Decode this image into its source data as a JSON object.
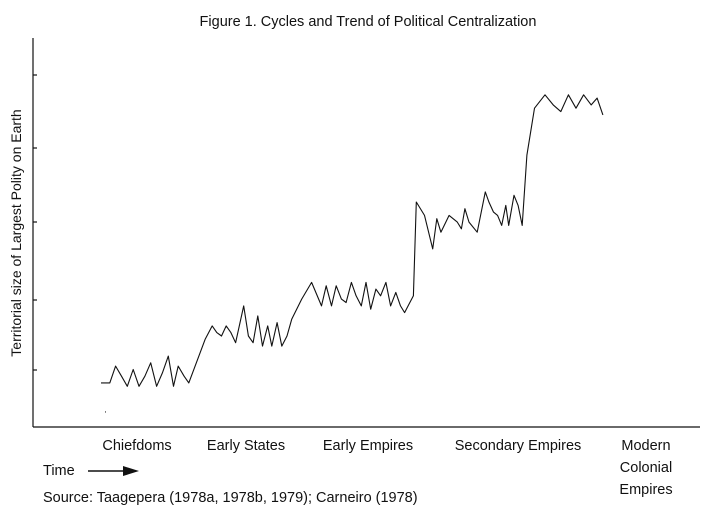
{
  "chart_data": {
    "type": "line",
    "title": "Figure 1.  Cycles and Trend of Political Centralization",
    "ylabel": "Territorial size of Largest Polity on Earth",
    "xlabel": "Time",
    "source": "Source: Taagepera (1978a, 1978b, 1979); Carneiro (1978)",
    "categories": [
      [
        "Chiefdoms"
      ],
      [
        "Early States"
      ],
      [
        "Early Empires"
      ],
      [
        "Secondary Empires"
      ],
      [
        "Modern",
        "Colonial",
        "Empires"
      ]
    ],
    "xlim": [
      0,
      100
    ],
    "ylim": [
      0,
      100
    ],
    "grid": false,
    "series": [
      {
        "x": [
          0,
          1.5,
          2.5,
          3.5,
          4.5,
          5.5,
          6.5,
          7.5,
          8.5,
          9.5,
          10.5,
          11.5,
          12.4,
          13.2,
          14.2,
          15.0,
          17.8,
          19.0,
          19.8,
          20.6,
          21.4,
          22.2,
          23.0,
          24.4,
          25.2,
          26.0,
          26.8,
          27.6,
          28.5,
          29.2,
          30.1,
          30.9,
          31.8,
          32.6,
          34.3,
          36.0,
          37.7,
          38.5,
          39.4,
          40.2,
          41.1,
          41.9,
          42.8,
          43.6,
          44.5,
          45.3,
          46.1,
          47.0,
          47.8,
          48.7,
          49.5,
          50.4,
          51.2,
          51.9,
          52.5,
          53.4,
          53.9,
          55.3,
          56.7,
          57.4,
          58.1,
          59.5,
          60.9,
          61.6,
          62.2,
          62.9,
          64.3,
          65.7,
          66.3,
          67.1,
          67.8,
          68.5,
          69.2,
          69.7,
          70.6,
          71.3,
          72.0,
          72.8,
          74.1,
          75.9,
          77.3,
          78.6,
          79.9,
          81.2,
          82.5,
          83.8,
          84.8,
          85.8
        ],
        "y": [
          6,
          6,
          11,
          8,
          5,
          10,
          5,
          8,
          12,
          5,
          9,
          14,
          5,
          11,
          8,
          6,
          19,
          23,
          21,
          20,
          23,
          21,
          18,
          29,
          20,
          18,
          26,
          17,
          23,
          17,
          24,
          17,
          20,
          25,
          31,
          36,
          29,
          35,
          29,
          35,
          31,
          30,
          36,
          32,
          29,
          36,
          28,
          34,
          32,
          36,
          29,
          33,
          29,
          27,
          29,
          32,
          60,
          56,
          46,
          55,
          51,
          56,
          54,
          52,
          58,
          54,
          51,
          63,
          60,
          57,
          56,
          53,
          59,
          53,
          62,
          59,
          53,
          74,
          88,
          92,
          89,
          87,
          92,
          88,
          92,
          89,
          91,
          86
        ]
      }
    ],
    "annotations": [
      {
        "x": 0.5,
        "y": -3.5,
        "text": "·"
      }
    ]
  }
}
